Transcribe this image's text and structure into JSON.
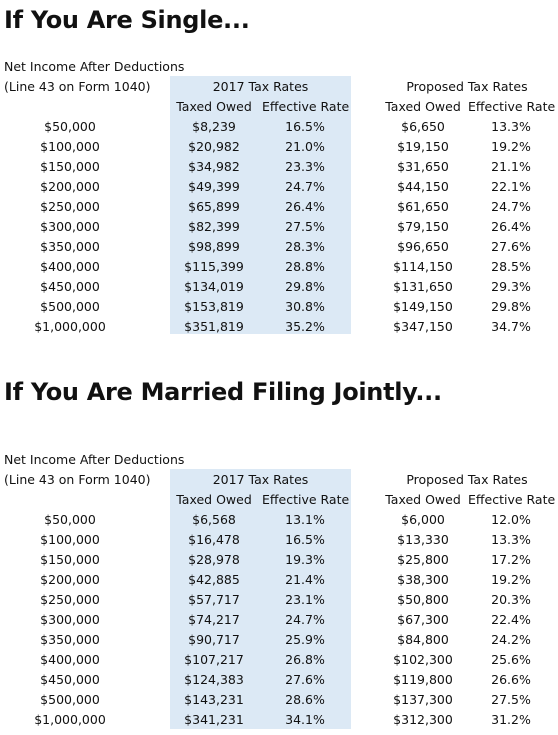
{
  "single": {
    "title": "If You Are Single...",
    "income_label_1": "Net Income After Deductions",
    "income_label_2": "(Line 43 on Form 1040)",
    "group_2017": "2017 Tax Rates",
    "group_proposed": "Proposed Tax Rates",
    "col_taxed": "Taxed Owed",
    "col_rate": "Effective Rate",
    "rows": [
      {
        "income": "$50,000",
        "taxed_2017": "$8,239",
        "rate_2017": "16.5%",
        "taxed_prop": "$6,650",
        "rate_prop": "13.3%"
      },
      {
        "income": "$100,000",
        "taxed_2017": "$20,982",
        "rate_2017": "21.0%",
        "taxed_prop": "$19,150",
        "rate_prop": "19.2%"
      },
      {
        "income": "$150,000",
        "taxed_2017": "$34,982",
        "rate_2017": "23.3%",
        "taxed_prop": "$31,650",
        "rate_prop": "21.1%"
      },
      {
        "income": "$200,000",
        "taxed_2017": "$49,399",
        "rate_2017": "24.7%",
        "taxed_prop": "$44,150",
        "rate_prop": "22.1%"
      },
      {
        "income": "$250,000",
        "taxed_2017": "$65,899",
        "rate_2017": "26.4%",
        "taxed_prop": "$61,650",
        "rate_prop": "24.7%"
      },
      {
        "income": "$300,000",
        "taxed_2017": "$82,399",
        "rate_2017": "27.5%",
        "taxed_prop": "$79,150",
        "rate_prop": "26.4%"
      },
      {
        "income": "$350,000",
        "taxed_2017": "$98,899",
        "rate_2017": "28.3%",
        "taxed_prop": "$96,650",
        "rate_prop": "27.6%"
      },
      {
        "income": "$400,000",
        "taxed_2017": "$115,399",
        "rate_2017": "28.8%",
        "taxed_prop": "$114,150",
        "rate_prop": "28.5%"
      },
      {
        "income": "$450,000",
        "taxed_2017": "$134,019",
        "rate_2017": "29.8%",
        "taxed_prop": "$131,650",
        "rate_prop": "29.3%"
      },
      {
        "income": "$500,000",
        "taxed_2017": "$153,819",
        "rate_2017": "30.8%",
        "taxed_prop": "$149,150",
        "rate_prop": "29.8%"
      },
      {
        "income": "$1,000,000",
        "taxed_2017": "$351,819",
        "rate_2017": "35.2%",
        "taxed_prop": "$347,150",
        "rate_prop": "34.7%"
      }
    ]
  },
  "married": {
    "title": "If You Are Married Filing Jointly...",
    "income_label_1": "Net Income After Deductions",
    "income_label_2": "(Line 43 on Form 1040)",
    "group_2017": "2017 Tax Rates",
    "group_proposed": "Proposed Tax Rates",
    "col_taxed": "Taxed Owed",
    "col_rate": "Effective Rate",
    "rows": [
      {
        "income": "$50,000",
        "taxed_2017": "$6,568",
        "rate_2017": "13.1%",
        "taxed_prop": "$6,000",
        "rate_prop": "12.0%"
      },
      {
        "income": "$100,000",
        "taxed_2017": "$16,478",
        "rate_2017": "16.5%",
        "taxed_prop": "$13,330",
        "rate_prop": "13.3%"
      },
      {
        "income": "$150,000",
        "taxed_2017": "$28,978",
        "rate_2017": "19.3%",
        "taxed_prop": "$25,800",
        "rate_prop": "17.2%"
      },
      {
        "income": "$200,000",
        "taxed_2017": "$42,885",
        "rate_2017": "21.4%",
        "taxed_prop": "$38,300",
        "rate_prop": "19.2%"
      },
      {
        "income": "$250,000",
        "taxed_2017": "$57,717",
        "rate_2017": "23.1%",
        "taxed_prop": "$50,800",
        "rate_prop": "20.3%"
      },
      {
        "income": "$300,000",
        "taxed_2017": "$74,217",
        "rate_2017": "24.7%",
        "taxed_prop": "$67,300",
        "rate_prop": "22.4%"
      },
      {
        "income": "$350,000",
        "taxed_2017": "$90,717",
        "rate_2017": "25.9%",
        "taxed_prop": "$84,800",
        "rate_prop": "24.2%"
      },
      {
        "income": "$400,000",
        "taxed_2017": "$107,217",
        "rate_2017": "26.8%",
        "taxed_prop": "$102,300",
        "rate_prop": "25.6%"
      },
      {
        "income": "$450,000",
        "taxed_2017": "$124,383",
        "rate_2017": "27.6%",
        "taxed_prop": "$119,800",
        "rate_prop": "26.6%"
      },
      {
        "income": "$500,000",
        "taxed_2017": "$143,231",
        "rate_2017": "28.6%",
        "taxed_prop": "$137,300",
        "rate_prop": "27.5%"
      },
      {
        "income": "$1,000,000",
        "taxed_2017": "$341,231",
        "rate_2017": "34.1%",
        "taxed_prop": "$312,300",
        "rate_prop": "31.2%"
      }
    ]
  }
}
